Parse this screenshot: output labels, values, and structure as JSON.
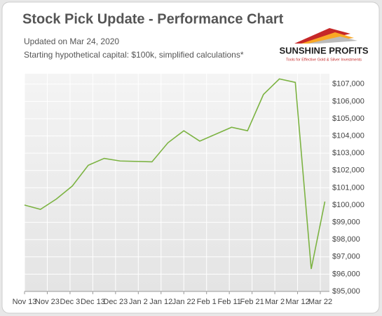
{
  "chart_data": {
    "type": "line",
    "title": "Stock Pick Update - Performance Chart",
    "subtitle": "Updated on Mar 24, 2020",
    "note": "Starting hypothetical capital: $100k, simplified calculations*",
    "logo": {
      "name": "SUNSHINE PROFITS",
      "tagline": "Tools for Effective Gold & Silver Investments"
    },
    "x": [
      "Nov 13",
      "Nov 20",
      "Nov 27",
      "Dec 4",
      "Dec 11",
      "Dec 18",
      "Dec 25",
      "Jan 8",
      "Jan 15",
      "Jan 22",
      "Jan 29",
      "Feb 12",
      "Feb 19",
      "Feb 26",
      "Mar 4",
      "Mar 11",
      "Mar 18",
      "Mar 24"
    ],
    "series": [
      {
        "color": "#7cb342",
        "values": [
          100000,
          99750,
          100350,
          101100,
          102300,
          102700,
          102550,
          102500,
          103600,
          104300,
          103700,
          104500,
          104300,
          106400,
          107300,
          107100,
          96300,
          100200
        ]
      }
    ],
    "xlim": [
      "Nov 13",
      "Mar 26"
    ],
    "xticks": [
      "Nov 13",
      "Nov 23",
      "Dec 3",
      "Dec 13",
      "Dec 23",
      "Jan 2",
      "Jan 12",
      "Jan 22",
      "Feb 1",
      "Feb 11",
      "Feb 21",
      "Mar 2",
      "Mar 12",
      "Mar 22"
    ],
    "ylim": [
      95000,
      107600
    ],
    "yticks": [
      {
        "value": 95000,
        "label": "$95,000"
      },
      {
        "value": 96000,
        "label": "$96,000"
      },
      {
        "value": 97000,
        "label": "$97,000"
      },
      {
        "value": 98000,
        "label": "$98,000"
      },
      {
        "value": 99000,
        "label": "$99,000"
      },
      {
        "value": 100000,
        "label": "$100,000"
      },
      {
        "value": 101000,
        "label": "$101,000"
      },
      {
        "value": 102000,
        "label": "$102,000"
      },
      {
        "value": 103000,
        "label": "$103,000"
      },
      {
        "value": 104000,
        "label": "$104,000"
      },
      {
        "value": 105000,
        "label": "$105,000"
      },
      {
        "value": 106000,
        "label": "$106,000"
      },
      {
        "value": 107000,
        "label": "$107,000"
      }
    ],
    "grid": true
  }
}
